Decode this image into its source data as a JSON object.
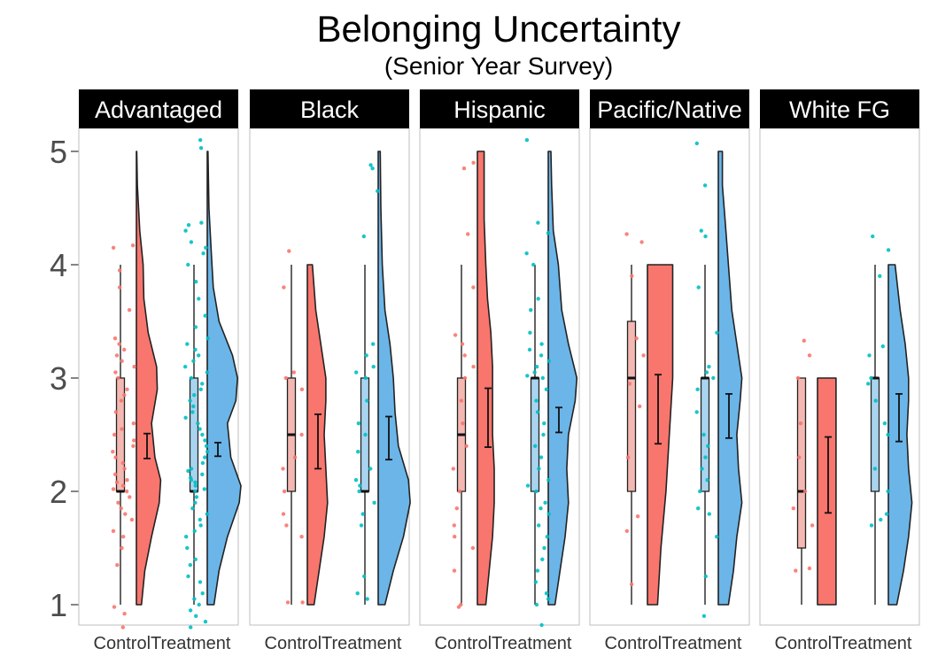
{
  "chart_data": {
    "type": "raincloud",
    "title": "Belonging Uncertainty",
    "subtitle": "(Senior Year Survey)",
    "xlabel": "",
    "ylabel": "",
    "ylim": [
      0.8,
      5.2
    ],
    "yticks": [
      1,
      2,
      3,
      4,
      5
    ],
    "grid": false,
    "categories": [
      "Control",
      "Treatment"
    ],
    "colors": {
      "Control": "#F8766D",
      "Control_box": "#F4B8B2",
      "Treatment": "#00BFC4",
      "Treatment_violin": "#6BB5E8",
      "Treatment_box": "#A8D4F0",
      "strip_bg": "#000000",
      "strip_text": "#ffffff",
      "panel_border": "#bfbfbf"
    },
    "panels": [
      {
        "name": "Advantaged",
        "groups": [
          {
            "label": "Control",
            "q1": 2,
            "median": 2,
            "q3": 3,
            "whisker_low": 1,
            "whisker_high": 4,
            "mean": 2.4,
            "ci_low": 2.29,
            "ci_high": 2.51,
            "violin_max": 5,
            "violin_min": 1,
            "density": [
              [
                1,
                0.15
              ],
              [
                1.3,
                0.25
              ],
              [
                1.6,
                0.45
              ],
              [
                1.9,
                0.68
              ],
              [
                2.1,
                0.72
              ],
              [
                2.3,
                0.55
              ],
              [
                2.6,
                0.45
              ],
              [
                2.9,
                0.62
              ],
              [
                3.1,
                0.6
              ],
              [
                3.4,
                0.35
              ],
              [
                3.7,
                0.22
              ],
              [
                4,
                0.2
              ],
              [
                4.3,
                0.1
              ],
              [
                4.7,
                0.03
              ],
              [
                5,
                0.01
              ]
            ],
            "points": [
              0.8,
              0.92,
              0.98,
              1.35,
              1.5,
              1.6,
              1.65,
              1.75,
              1.8,
              1.85,
              1.9,
              1.95,
              2.0,
              2.02,
              2.05,
              2.08,
              2.1,
              2.15,
              2.2,
              2.25,
              2.3,
              2.35,
              2.4,
              2.45,
              2.5,
              2.55,
              2.6,
              2.7,
              2.8,
              2.85,
              2.9,
              3.0,
              3.05,
              3.1,
              3.15,
              3.2,
              3.25,
              3.3,
              3.35,
              3.6,
              3.8,
              3.95,
              4.15,
              4.17
            ]
          },
          {
            "label": "Treatment",
            "q1": 2,
            "median": 2,
            "q3": 3,
            "whisker_low": 1,
            "whisker_high": 4,
            "mean": 2.37,
            "ci_low": 2.31,
            "ci_high": 2.43,
            "violin_max": 5,
            "violin_min": 1,
            "density": [
              [
                1,
                0.2
              ],
              [
                1.3,
                0.35
              ],
              [
                1.6,
                0.6
              ],
              [
                1.9,
                0.95
              ],
              [
                2.05,
                1.0
              ],
              [
                2.3,
                0.7
              ],
              [
                2.6,
                0.6
              ],
              [
                2.8,
                0.85
              ],
              [
                3.0,
                0.9
              ],
              [
                3.2,
                0.75
              ],
              [
                3.5,
                0.35
              ],
              [
                3.8,
                0.18
              ],
              [
                4.1,
                0.12
              ],
              [
                4.5,
                0.05
              ],
              [
                5,
                0.02
              ]
            ],
            "points": [
              0.8,
              0.85,
              0.9,
              0.95,
              1.0,
              1.05,
              1.1,
              1.2,
              1.25,
              1.35,
              1.4,
              1.5,
              1.6,
              1.65,
              1.7,
              1.75,
              1.8,
              1.85,
              1.9,
              1.95,
              2.0,
              2.02,
              2.05,
              2.08,
              2.1,
              2.12,
              2.15,
              2.18,
              2.2,
              2.25,
              2.3,
              2.35,
              2.4,
              2.45,
              2.5,
              2.55,
              2.6,
              2.65,
              2.7,
              2.75,
              2.8,
              2.85,
              2.9,
              2.95,
              3.0,
              3.05,
              3.1,
              3.15,
              3.2,
              3.25,
              3.3,
              3.35,
              3.45,
              3.55,
              3.7,
              3.85,
              4.0,
              4.1,
              4.15,
              4.2,
              4.3,
              4.35,
              4.37,
              5.03,
              5.1
            ]
          }
        ]
      },
      {
        "name": "Black",
        "groups": [
          {
            "label": "Control",
            "q1": 2,
            "median": 2.5,
            "q3": 3,
            "whisker_low": 1,
            "whisker_high": 4,
            "mean": 2.44,
            "ci_low": 2.2,
            "ci_high": 2.68,
            "violin_max": 4,
            "violin_min": 1,
            "density": [
              [
                1,
                0.2
              ],
              [
                1.3,
                0.35
              ],
              [
                1.6,
                0.5
              ],
              [
                1.9,
                0.6
              ],
              [
                2.2,
                0.55
              ],
              [
                2.5,
                0.5
              ],
              [
                2.8,
                0.55
              ],
              [
                3.0,
                0.55
              ],
              [
                3.3,
                0.4
              ],
              [
                3.6,
                0.25
              ],
              [
                4,
                0.15
              ]
            ],
            "points": [
              1.02,
              1.02,
              1.6,
              1.7,
              1.8,
              2.0,
              2.2,
              2.3,
              2.5,
              2.9,
              3.0,
              3.05,
              3.8,
              4.12
            ]
          },
          {
            "label": "Treatment",
            "q1": 2,
            "median": 2,
            "q3": 3,
            "whisker_low": 1,
            "whisker_high": 4,
            "mean": 2.47,
            "ci_low": 2.28,
            "ci_high": 2.66,
            "violin_max": 5,
            "violin_min": 1,
            "density": [
              [
                1,
                0.2
              ],
              [
                1.3,
                0.45
              ],
              [
                1.6,
                0.75
              ],
              [
                1.9,
                0.95
              ],
              [
                2.1,
                0.9
              ],
              [
                2.4,
                0.6
              ],
              [
                2.7,
                0.5
              ],
              [
                3.0,
                0.45
              ],
              [
                3.3,
                0.35
              ],
              [
                3.6,
                0.2
              ],
              [
                4,
                0.12
              ],
              [
                4.5,
                0.08
              ],
              [
                5,
                0.06
              ]
            ],
            "points": [
              1.05,
              1.1,
              1.25,
              1.7,
              1.8,
              1.9,
              2.0,
              2.05,
              2.1,
              2.2,
              2.35,
              2.5,
              2.6,
              2.8,
              3.0,
              3.05,
              3.1,
              3.2,
              3.3,
              4.25,
              4.65,
              4.85,
              4.88
            ]
          }
        ]
      },
      {
        "name": "Hispanic",
        "groups": [
          {
            "label": "Control",
            "q1": 2,
            "median": 2.5,
            "q3": 3,
            "whisker_low": 1,
            "whisker_high": 4,
            "mean": 2.65,
            "ci_low": 2.39,
            "ci_high": 2.91,
            "violin_max": 5,
            "violin_min": 1,
            "density": [
              [
                1,
                0.25
              ],
              [
                1.3,
                0.35
              ],
              [
                1.6,
                0.45
              ],
              [
                1.9,
                0.5
              ],
              [
                2.2,
                0.5
              ],
              [
                2.5,
                0.45
              ],
              [
                2.8,
                0.45
              ],
              [
                3.1,
                0.45
              ],
              [
                3.4,
                0.4
              ],
              [
                3.7,
                0.3
              ],
              [
                4,
                0.25
              ],
              [
                4.4,
                0.2
              ],
              [
                4.7,
                0.2
              ],
              [
                5,
                0.2
              ]
            ],
            "points": [
              0.98,
              1.0,
              1.3,
              1.5,
              1.6,
              1.7,
              1.85,
              2.0,
              2.2,
              2.4,
              2.6,
              2.8,
              3.0,
              3.1,
              3.2,
              3.3,
              3.38,
              3.8,
              4.27,
              4.85,
              4.9
            ]
          },
          {
            "label": "Treatment",
            "q1": 2,
            "median": 3,
            "q3": 3,
            "whisker_low": 1,
            "whisker_high": 4,
            "mean": 2.63,
            "ci_low": 2.52,
            "ci_high": 2.74,
            "violin_max": 5,
            "violin_min": 1,
            "density": [
              [
                1,
                0.2
              ],
              [
                1.3,
                0.35
              ],
              [
                1.6,
                0.5
              ],
              [
                1.9,
                0.6
              ],
              [
                2.2,
                0.55
              ],
              [
                2.5,
                0.6
              ],
              [
                2.8,
                0.8
              ],
              [
                3.0,
                0.85
              ],
              [
                3.3,
                0.6
              ],
              [
                3.6,
                0.4
              ],
              [
                4,
                0.3
              ],
              [
                4.3,
                0.15
              ],
              [
                4.7,
                0.1
              ],
              [
                5,
                0.08
              ]
            ],
            "points": [
              0.82,
              1.0,
              1.05,
              1.1,
              1.2,
              1.3,
              1.4,
              1.5,
              1.6,
              1.7,
              1.8,
              1.85,
              1.9,
              2.0,
              2.05,
              2.1,
              2.2,
              2.3,
              2.4,
              2.5,
              2.6,
              2.7,
              2.8,
              2.9,
              3.0,
              3.02,
              3.05,
              3.1,
              3.15,
              3.2,
              3.25,
              3.3,
              3.4,
              3.6,
              3.7,
              4.0,
              4.1,
              4.28,
              4.37,
              5.1
            ]
          }
        ]
      },
      {
        "name": "Pacific/Native",
        "groups": [
          {
            "label": "Control",
            "q1": 2,
            "median": 3,
            "q3": 3.5,
            "whisker_low": 1,
            "whisker_high": 4,
            "mean": 2.72,
            "ci_low": 2.42,
            "ci_high": 3.03,
            "violin_max": 4,
            "violin_min": 1,
            "density": [
              [
                1,
                0.3
              ],
              [
                1.5,
                0.4
              ],
              [
                2.0,
                0.55
              ],
              [
                2.5,
                0.65
              ],
              [
                3.0,
                0.75
              ],
              [
                3.5,
                0.75
              ],
              [
                4,
                0.75
              ]
            ],
            "points": [
              1.18,
              1.65,
              1.78,
              2.3,
              2.75,
              2.95,
              3.2,
              3.35,
              3.9,
              4.2,
              4.27
            ]
          },
          {
            "label": "Treatment",
            "q1": 2,
            "median": 3,
            "q3": 3,
            "whisker_low": 1,
            "whisker_high": 4,
            "mean": 2.66,
            "ci_low": 2.47,
            "ci_high": 2.86,
            "violin_max": 5,
            "violin_min": 1,
            "density": [
              [
                1,
                0.3
              ],
              [
                1.3,
                0.45
              ],
              [
                1.6,
                0.55
              ],
              [
                1.9,
                0.7
              ],
              [
                2.2,
                0.6
              ],
              [
                2.5,
                0.55
              ],
              [
                2.8,
                0.65
              ],
              [
                3.0,
                0.7
              ],
              [
                3.3,
                0.55
              ],
              [
                3.6,
                0.4
              ],
              [
                4,
                0.3
              ],
              [
                4.4,
                0.2
              ],
              [
                4.7,
                0.12
              ],
              [
                5,
                0.12
              ]
            ],
            "points": [
              0.9,
              1.25,
              1.6,
              1.8,
              1.85,
              2.0,
              2.1,
              2.2,
              2.3,
              2.4,
              2.5,
              2.7,
              2.9,
              3.0,
              3.05,
              3.1,
              3.4,
              3.8,
              4.25,
              4.3,
              4.7,
              5.07
            ]
          }
        ]
      },
      {
        "name": "White FG",
        "groups": [
          {
            "label": "Control",
            "q1": 1.5,
            "median": 2,
            "q3": 3,
            "whisker_low": 1,
            "whisker_high": 3,
            "mean": 2.14,
            "ci_low": 1.81,
            "ci_high": 2.48,
            "violin_max": 3,
            "violin_min": 1,
            "density": [
              [
                1,
                0.55
              ],
              [
                1.5,
                0.55
              ],
              [
                2.0,
                0.55
              ],
              [
                2.5,
                0.55
              ],
              [
                3,
                0.55
              ]
            ],
            "points": [
              1.3,
              1.32,
              1.7,
              1.85,
              2.0,
              2.3,
              2.6,
              3.0,
              3.2,
              3.33
            ]
          },
          {
            "label": "Treatment",
            "q1": 2,
            "median": 3,
            "q3": 3,
            "whisker_low": 1,
            "whisker_high": 4,
            "mean": 2.65,
            "ci_low": 2.44,
            "ci_high": 2.86,
            "violin_max": 4,
            "violin_min": 1,
            "density": [
              [
                1,
                0.25
              ],
              [
                1.3,
                0.45
              ],
              [
                1.6,
                0.6
              ],
              [
                1.9,
                0.7
              ],
              [
                2.2,
                0.6
              ],
              [
                2.5,
                0.55
              ],
              [
                2.8,
                0.6
              ],
              [
                3.0,
                0.6
              ],
              [
                3.3,
                0.5
              ],
              [
                3.6,
                0.35
              ],
              [
                4,
                0.2
              ]
            ],
            "points": [
              1.7,
              1.75,
              1.8,
              2.0,
              2.2,
              2.5,
              2.6,
              2.8,
              2.95,
              3.0,
              3.2,
              3.28,
              3.9,
              4.13,
              4.25
            ]
          }
        ]
      }
    ]
  }
}
